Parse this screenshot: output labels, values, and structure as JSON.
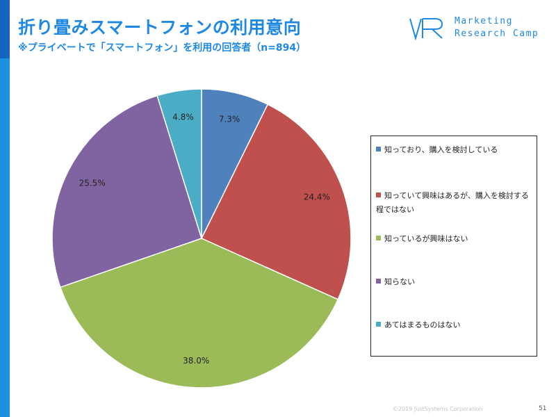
{
  "header": {
    "title": "折り畳みスマートフォンの利用意向",
    "subtitle": "※プライベートで「スマートフォン」を利用の回答者（n=894）"
  },
  "logo": {
    "line1": "Marketing",
    "line2": "Research Camp",
    "color": "#1e88e5"
  },
  "chart_data": {
    "type": "pie",
    "start": "12 o'clock, clockwise",
    "legend_position": "right",
    "slices": [
      {
        "label": "知っており、購入を検討している",
        "value": 7.3,
        "display": "7.3%",
        "color": "#4f81bd"
      },
      {
        "label": "知っていて興味はあるが、購入を検討する程ではない",
        "value": 24.4,
        "display": "24.4%",
        "color": "#c0504d"
      },
      {
        "label": "知っているが興味はない",
        "value": 38.0,
        "display": "38.0%",
        "color": "#9bbb59"
      },
      {
        "label": "知らない",
        "value": 25.5,
        "display": "25.5%",
        "color": "#8064a2"
      },
      {
        "label": "あてはまるものはない",
        "value": 4.8,
        "display": "4.8%",
        "color": "#4bacc6"
      }
    ]
  },
  "footer": {
    "copyright": "©2019 JustSystems Corporation",
    "page": "51"
  }
}
